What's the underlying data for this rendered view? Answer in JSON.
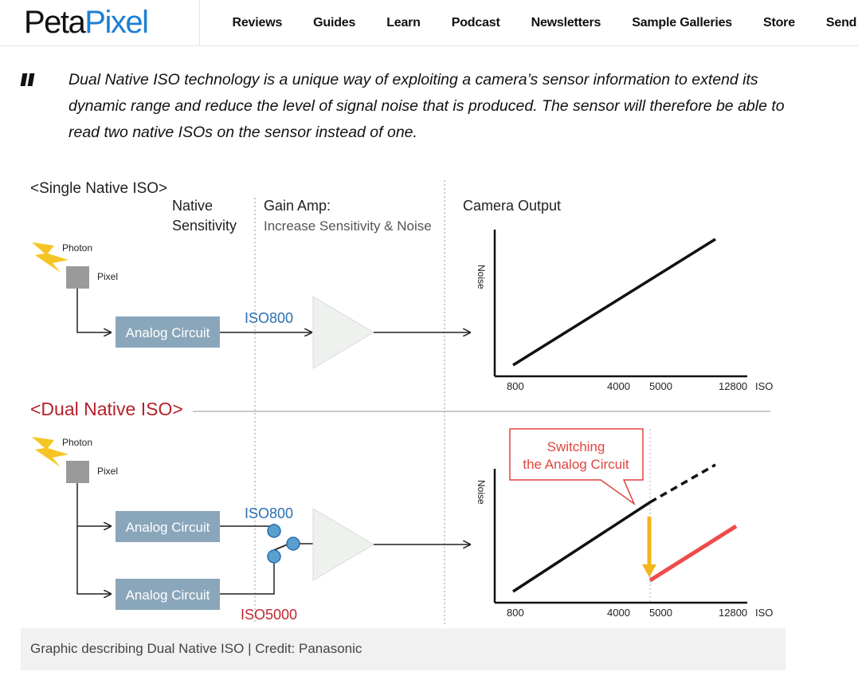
{
  "header": {
    "logo_part1": "Peta",
    "logo_part2": "Pixel",
    "nav": [
      "Reviews",
      "Guides",
      "Learn",
      "Podcast",
      "Newsletters",
      "Sample Galleries",
      "Store",
      "Send Tip"
    ],
    "brand_color": "#1e7fd4"
  },
  "quote": {
    "text": "Dual Native ISO technology is a unique way of exploiting a camera’s sensor information to extend its dynamic range and reduce the level of signal noise that is produced. The sensor will therefore be able to read two native ISOs on the sensor instead of one."
  },
  "figure": {
    "single_title": "<Single Native ISO>",
    "dual_title": "<Dual Native ISO>",
    "native_line1": "Native",
    "native_line2": "Sensitivity",
    "gain_line1": "Gain Amp:",
    "gain_line2": "Increase Sensitivity & Noise",
    "camera_output": "Camera Output",
    "photon": "Photon",
    "pixel": "Pixel",
    "analog_circuit": "Analog Circuit",
    "iso800": "ISO800",
    "iso5000": "ISO5000",
    "noise_label": "Noise",
    "x_ticks": [
      "800",
      "4000",
      "5000",
      "12800",
      "ISO"
    ],
    "callout_line1": "Switching",
    "callout_line2": "the Analog Circuit",
    "colors": {
      "dual_title": "#b5212a",
      "callout": "#e0443e",
      "circuit_box": "#8aa6ba",
      "iso_label": "#2a6fb0",
      "iso5000_label": "#c4262e",
      "switch_arrow": "#f2b51a",
      "high_iso_line": "#ef4b4b"
    }
  },
  "caption": "Graphic describing Dual Native ISO | Credit: Panasonic"
}
